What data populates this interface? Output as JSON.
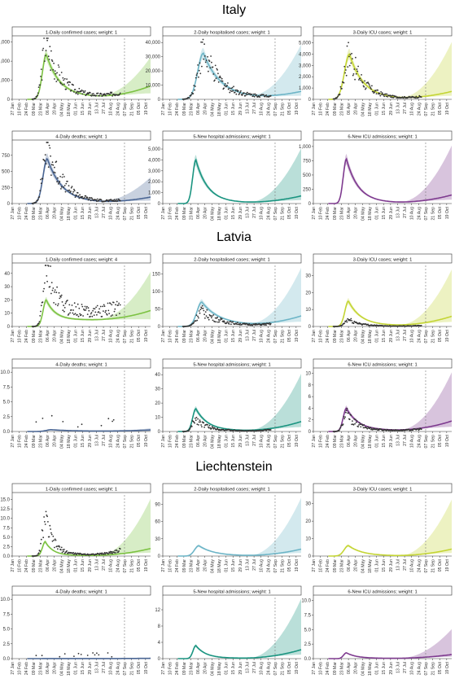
{
  "countries": [
    {
      "name": "Italy",
      "panels": [
        {
          "title": "1-Daily confirmed cases; weight: 1",
          "yticks": [
            0,
            2000,
            4000,
            6000
          ],
          "ymax": 6400,
          "color": "#7cc242",
          "peak_day": 68,
          "peak": 4700,
          "rise": 11,
          "fall": 27,
          "floor": 250,
          "tail_end": 1400,
          "band_end": 4300,
          "obs_peak": 6000
        },
        {
          "title": "2-Daily hospitalised cases; weight: 1",
          "yticks": [
            0,
            10000,
            20000,
            30000,
            40000
          ],
          "ymax": 43000,
          "color": "#6db5c7",
          "peak_day": 81,
          "peak": 32500,
          "rise": 16,
          "fall": 35,
          "floor": 900,
          "tail_end": 5500,
          "band_end": 38000,
          "obs_peak": 33000
        },
        {
          "title": "3-Daily ICU cases; weight: 1",
          "yticks": [
            0,
            1000,
            2000,
            3000,
            4000,
            5000
          ],
          "ymax": 5400,
          "color": "#c4d534",
          "peak_day": 72,
          "peak": 4000,
          "rise": 14,
          "fall": 28,
          "floor": 60,
          "tail_end": 700,
          "band_end": 5000,
          "obs_peak": 4050
        },
        {
          "title": "4-Daily deaths; weight: 1",
          "yticks": [
            0,
            250,
            500,
            750
          ],
          "ymax": 950,
          "color": "#4a6694",
          "peak_day": 70,
          "peak": 700,
          "rise": 12,
          "fall": 30,
          "floor": 15,
          "tail_end": 100,
          "band_end": 400,
          "obs_peak": 900
        },
        {
          "title": "5-New hospital admissions; weight: 1",
          "yticks": [
            0,
            1000,
            2000,
            3000,
            4000,
            5000
          ],
          "ymax": 5600,
          "color": "#1a9480",
          "peak_day": 66,
          "peak": 4000,
          "rise": 9,
          "fall": 24,
          "floor": 80,
          "tail_end": 700,
          "band_end": 5000,
          "obs_peak": 0
        },
        {
          "title": "6-New ICU admissions; weight: 1",
          "yticks": [
            0,
            250,
            500,
            750,
            1000
          ],
          "ymax": 1070,
          "color": "#7e3a8f",
          "peak_day": 66,
          "peak": 780,
          "rise": 9,
          "fall": 24,
          "floor": 15,
          "tail_end": 150,
          "band_end": 1000,
          "obs_peak": 0
        }
      ]
    },
    {
      "name": "Latvia",
      "panels": [
        {
          "title": "1-Daily confirmed cases; weight: 4",
          "yticks": [
            0,
            10,
            20,
            30,
            40
          ],
          "ymax": 46,
          "color": "#7cc242",
          "peak_day": 68,
          "peak": 20,
          "rise": 9,
          "fall": 18,
          "floor": 5,
          "tail_end": 12,
          "band_end": 40,
          "obs_peak": 45
        },
        {
          "title": "2-Daily hospitalised cases; weight: 1",
          "yticks": [
            0,
            50,
            100,
            150
          ],
          "ymax": 175,
          "color": "#6db5c7",
          "peak_day": 78,
          "peak": 70,
          "rise": 14,
          "fall": 35,
          "floor": 4,
          "tail_end": 30,
          "band_end": 165,
          "obs_peak": 45
        },
        {
          "title": "3-Daily ICU cases; weight: 1",
          "yticks": [
            0,
            10,
            20,
            30
          ],
          "ymax": 36,
          "color": "#c4d534",
          "peak_day": 70,
          "peak": 15,
          "rise": 10,
          "fall": 25,
          "floor": 0.6,
          "tail_end": 6,
          "band_end": 33,
          "obs_peak": 4
        },
        {
          "title": "4-Daily deaths; weight: 1",
          "yticks": [
            0,
            2.5,
            5.0,
            7.5,
            10.0
          ],
          "ymax": 10.3,
          "color": "#4a6694",
          "peak_day": 78,
          "peak": 0.3,
          "rise": 14,
          "fall": 40,
          "floor": 0.05,
          "tail_end": 0.25,
          "band_end": 0.5,
          "obs_peak": 3
        },
        {
          "title": "5-New hospital admissions; weight: 1",
          "yticks": [
            0,
            10,
            20,
            30,
            40
          ],
          "ymax": 43,
          "color": "#1a9480",
          "peak_day": 66,
          "peak": 16,
          "rise": 9,
          "fall": 24,
          "floor": 0.6,
          "tail_end": 7,
          "band_end": 40,
          "obs_peak": 9
        },
        {
          "title": "6-New ICU admissions; weight: 1",
          "yticks": [
            0,
            2,
            4,
            6,
            8,
            10
          ],
          "ymax": 10.5,
          "color": "#7e3a8f",
          "peak_day": 66,
          "peak": 4,
          "rise": 9,
          "fall": 24,
          "floor": 0.2,
          "tail_end": 1.8,
          "band_end": 10,
          "obs_peak": 3
        }
      ]
    },
    {
      "name": "Liechtenstein",
      "panels": [
        {
          "title": "1-Daily confirmed cases; weight: 1",
          "yticks": [
            0,
            2.5,
            5.0,
            7.5,
            10.0,
            12.5,
            15.0
          ],
          "ymax": 16.2,
          "color": "#7cc242",
          "peak_day": 66,
          "peak": 3.8,
          "rise": 8,
          "fall": 16,
          "floor": 0.15,
          "tail_end": 2,
          "band_end": 15,
          "obs_peak": 10
        },
        {
          "title": "2-Daily hospitalised cases; weight: 1",
          "yticks": [
            0,
            30,
            60,
            90
          ],
          "ymax": 106,
          "color": "#6db5c7",
          "peak_day": 72,
          "peak": 18,
          "rise": 12,
          "fall": 30,
          "floor": 0.4,
          "tail_end": 12,
          "band_end": 100,
          "obs_peak": 0
        },
        {
          "title": "3-Daily ICU cases; weight: 1",
          "yticks": [
            0,
            10,
            20,
            30
          ],
          "ymax": 35,
          "color": "#c4d534",
          "peak_day": 70,
          "peak": 6,
          "rise": 12,
          "fall": 28,
          "floor": 0.1,
          "tail_end": 4,
          "band_end": 32,
          "obs_peak": 0
        },
        {
          "title": "4-Daily deaths; weight: 1",
          "yticks": [
            0,
            2.5,
            5.0,
            7.5,
            10.0
          ],
          "ymax": 10.3,
          "color": "#4a6694",
          "peak_day": 70,
          "peak": 0.02,
          "rise": 10,
          "fall": 30,
          "floor": 0.01,
          "tail_end": 0.05,
          "band_end": 0.1,
          "obs_peak": 1
        },
        {
          "title": "5-New hospital admissions; weight: 1",
          "yticks": [
            0,
            4.0,
            8.0,
            12.0
          ],
          "ymax": 15,
          "color": "#1a9480",
          "peak_day": 66,
          "peak": 3.2,
          "rise": 8,
          "fall": 20,
          "floor": 0.1,
          "tail_end": 2.2,
          "band_end": 14.5,
          "obs_peak": 0
        },
        {
          "title": "6-New ICU admissions; weight: 1",
          "yticks": [
            0,
            2.5,
            5.0,
            7.5,
            10.0
          ],
          "ymax": 10.5,
          "color": "#7e3a8f",
          "peak_day": 66,
          "peak": 1,
          "rise": 8,
          "fall": 20,
          "floor": 0.05,
          "tail_end": 0.7,
          "band_end": 5,
          "obs_peak": 0
        }
      ]
    }
  ],
  "chart_data": {
    "type": "line",
    "x_tick_labels": [
      "27 Jan",
      "10 Feb",
      "24 Feb",
      "09 Mar",
      "23 Mar",
      "06 Apr",
      "20 Apr",
      "04 May",
      "18 May",
      "01 Jun",
      "15 Jun",
      "29 Jun",
      "13 Jul",
      "27 Jul",
      "10 Aug",
      "24 Aug",
      "07 Sep",
      "21 Sep",
      "05 Oct",
      "19 Oct"
    ],
    "x_tick_days": [
      0,
      14,
      28,
      42,
      56,
      70,
      84,
      98,
      112,
      126,
      140,
      154,
      168,
      182,
      196,
      210,
      224,
      238,
      252,
      266
    ],
    "x_range_days": [
      0,
      276
    ],
    "data_cutoff_day": 224,
    "grid": false,
    "legend": "none",
    "note": "Per-panel series (model fit, uncertainty band and observed data) are described by the peak/floor/tail parameters in countries[].panels[]; projection begins at the dashed line."
  }
}
